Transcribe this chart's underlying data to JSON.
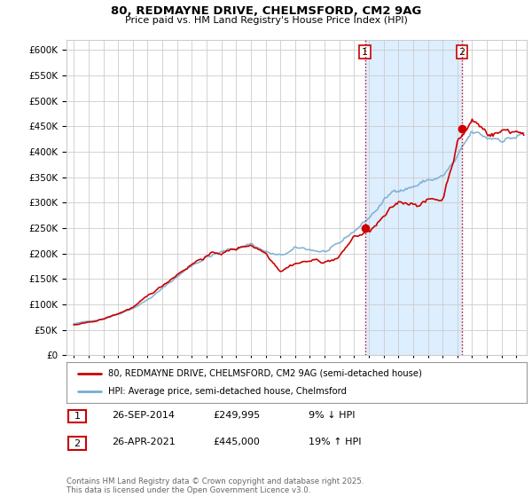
{
  "title_line1": "80, REDMAYNE DRIVE, CHELMSFORD, CM2 9AG",
  "title_line2": "Price paid vs. HM Land Registry's House Price Index (HPI)",
  "legend_label1": "80, REDMAYNE DRIVE, CHELMSFORD, CM2 9AG (semi-detached house)",
  "legend_label2": "HPI: Average price, semi-detached house, Chelmsford",
  "sale1_date": "26-SEP-2014",
  "sale1_price": "£249,995",
  "sale1_hpi": "9% ↓ HPI",
  "sale1_year": 2014.74,
  "sale1_value": 249995,
  "sale2_date": "26-APR-2021",
  "sale2_price": "£445,000",
  "sale2_hpi": "19% ↑ HPI",
  "sale2_year": 2021.32,
  "sale2_value": 445000,
  "line_color_red": "#cc0000",
  "line_color_blue": "#7aadcf",
  "vline_color": "#cc0000",
  "highlight_color": "#ddeeff",
  "footer": "Contains HM Land Registry data © Crown copyright and database right 2025.\nThis data is licensed under the Open Government Licence v3.0.",
  "ylim_min": 0,
  "ylim_max": 620000,
  "yticks": [
    0,
    50000,
    100000,
    150000,
    200000,
    250000,
    300000,
    350000,
    400000,
    450000,
    500000,
    550000,
    600000
  ],
  "xlim_min": 1994.5,
  "xlim_max": 2025.7,
  "background_color": "#ffffff",
  "grid_color": "#cccccc"
}
